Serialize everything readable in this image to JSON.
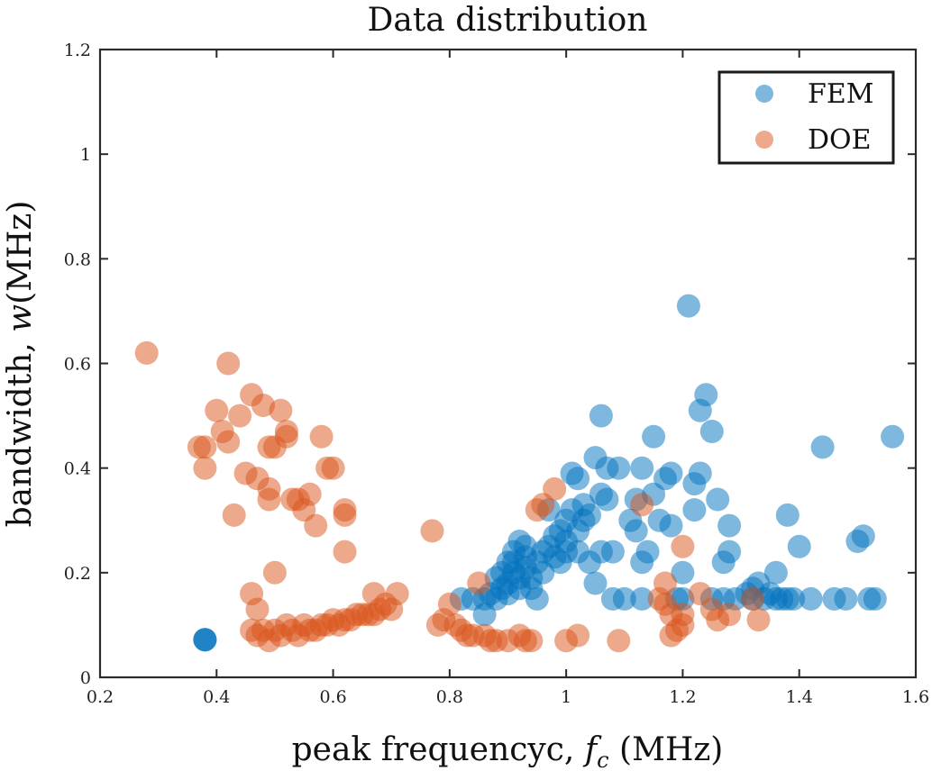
{
  "chart_data": {
    "type": "scatter",
    "title": "Data distribution",
    "xlabel": "peak frequencyc, f_c (MHz)",
    "xlabel_parts": {
      "prefix": "peak frequencyc, ",
      "var": "f",
      "sub": "c",
      "suffix": " (MHz)"
    },
    "ylabel": "bandwidth, w(MHz)",
    "ylabel_parts": {
      "prefix": "bandwidth, ",
      "var": "w",
      "suffix": "(MHz)"
    },
    "xlim": [
      0.2,
      1.6
    ],
    "ylim": [
      0,
      1.2
    ],
    "xticks": [
      0.2,
      0.4,
      0.6,
      0.8,
      1,
      1.2,
      1.4,
      1.6
    ],
    "xtick_labels": [
      "0.2",
      "0.4",
      "0.6",
      "0.8",
      "1",
      "1.2",
      "1.4",
      "1.6"
    ],
    "yticks": [
      0,
      0.2,
      0.4,
      0.6,
      0.8,
      1,
      1.2
    ],
    "ytick_labels": [
      "0",
      "0.2",
      "0.4",
      "0.6",
      "0.8",
      "1",
      "1.2"
    ],
    "grid": false,
    "legend_position": "top-right",
    "series": [
      {
        "name": "FEM",
        "color": "#0072BD",
        "points": [
          [
            0.38,
            0.072
          ],
          [
            0.38,
            0.072
          ],
          [
            0.38,
            0.072
          ],
          [
            0.82,
            0.15
          ],
          [
            0.84,
            0.15
          ],
          [
            0.86,
            0.12
          ],
          [
            0.86,
            0.15
          ],
          [
            0.87,
            0.16
          ],
          [
            0.88,
            0.15
          ],
          [
            0.88,
            0.19
          ],
          [
            0.89,
            0.17
          ],
          [
            0.89,
            0.2
          ],
          [
            0.9,
            0.22
          ],
          [
            0.9,
            0.16
          ],
          [
            0.9,
            0.18
          ],
          [
            0.91,
            0.2
          ],
          [
            0.91,
            0.22
          ],
          [
            0.91,
            0.24
          ],
          [
            0.92,
            0.26
          ],
          [
            0.92,
            0.19
          ],
          [
            0.92,
            0.17
          ],
          [
            0.93,
            0.21
          ],
          [
            0.93,
            0.23
          ],
          [
            0.93,
            0.25
          ],
          [
            0.94,
            0.19
          ],
          [
            0.94,
            0.17
          ],
          [
            0.95,
            0.22
          ],
          [
            0.95,
            0.15
          ],
          [
            0.96,
            0.24
          ],
          [
            0.96,
            0.2
          ],
          [
            0.97,
            0.25
          ],
          [
            0.97,
            0.32
          ],
          [
            0.98,
            0.27
          ],
          [
            0.98,
            0.23
          ],
          [
            0.99,
            0.28
          ],
          [
            0.99,
            0.22
          ],
          [
            1.0,
            0.3
          ],
          [
            1.0,
            0.26
          ],
          [
            1.0,
            0.24
          ],
          [
            1.01,
            0.32
          ],
          [
            1.01,
            0.39
          ],
          [
            1.02,
            0.28
          ],
          [
            1.02,
            0.24
          ],
          [
            1.02,
            0.38
          ],
          [
            1.03,
            0.33
          ],
          [
            1.03,
            0.3
          ],
          [
            1.04,
            0.31
          ],
          [
            1.04,
            0.22
          ],
          [
            1.05,
            0.42
          ],
          [
            1.05,
            0.18
          ],
          [
            1.06,
            0.5
          ],
          [
            1.06,
            0.35
          ],
          [
            1.06,
            0.24
          ],
          [
            1.07,
            0.4
          ],
          [
            1.07,
            0.34
          ],
          [
            1.08,
            0.15
          ],
          [
            1.08,
            0.24
          ],
          [
            1.09,
            0.4
          ],
          [
            1.1,
            0.15
          ],
          [
            1.11,
            0.3
          ],
          [
            1.12,
            0.34
          ],
          [
            1.12,
            0.28
          ],
          [
            1.13,
            0.4
          ],
          [
            1.13,
            0.22
          ],
          [
            1.13,
            0.15
          ],
          [
            1.14,
            0.24
          ],
          [
            1.15,
            0.46
          ],
          [
            1.15,
            0.35
          ],
          [
            1.16,
            0.3
          ],
          [
            1.17,
            0.38
          ],
          [
            1.18,
            0.29
          ],
          [
            1.18,
            0.39
          ],
          [
            1.19,
            0.15
          ],
          [
            1.2,
            0.2
          ],
          [
            1.2,
            0.15
          ],
          [
            1.21,
            0.71
          ],
          [
            1.22,
            0.37
          ],
          [
            1.22,
            0.32
          ],
          [
            1.23,
            0.39
          ],
          [
            1.23,
            0.51
          ],
          [
            1.24,
            0.54
          ],
          [
            1.25,
            0.47
          ],
          [
            1.25,
            0.15
          ],
          [
            1.26,
            0.34
          ],
          [
            1.27,
            0.22
          ],
          [
            1.27,
            0.15
          ],
          [
            1.28,
            0.29
          ],
          [
            1.28,
            0.24
          ],
          [
            1.29,
            0.15
          ],
          [
            1.31,
            0.16
          ],
          [
            1.32,
            0.15
          ],
          [
            1.32,
            0.17
          ],
          [
            1.33,
            0.18
          ],
          [
            1.34,
            0.15
          ],
          [
            1.35,
            0.16
          ],
          [
            1.36,
            0.2
          ],
          [
            1.36,
            0.15
          ],
          [
            1.37,
            0.15
          ],
          [
            1.38,
            0.15
          ],
          [
            1.38,
            0.31
          ],
          [
            1.39,
            0.15
          ],
          [
            1.4,
            0.25
          ],
          [
            1.42,
            0.15
          ],
          [
            1.44,
            0.44
          ],
          [
            1.46,
            0.15
          ],
          [
            1.48,
            0.15
          ],
          [
            1.5,
            0.26
          ],
          [
            1.51,
            0.27
          ],
          [
            1.52,
            0.15
          ],
          [
            1.53,
            0.15
          ],
          [
            1.56,
            0.46
          ]
        ]
      },
      {
        "name": "DOE",
        "color": "#D95319",
        "points": [
          [
            0.28,
            0.62
          ],
          [
            0.37,
            0.44
          ],
          [
            0.38,
            0.44
          ],
          [
            0.38,
            0.4
          ],
          [
            0.4,
            0.51
          ],
          [
            0.41,
            0.47
          ],
          [
            0.42,
            0.6
          ],
          [
            0.42,
            0.45
          ],
          [
            0.43,
            0.31
          ],
          [
            0.44,
            0.5
          ],
          [
            0.45,
            0.39
          ],
          [
            0.46,
            0.54
          ],
          [
            0.46,
            0.16
          ],
          [
            0.47,
            0.13
          ],
          [
            0.47,
            0.38
          ],
          [
            0.48,
            0.52
          ],
          [
            0.49,
            0.44
          ],
          [
            0.49,
            0.36
          ],
          [
            0.49,
            0.34
          ],
          [
            0.5,
            0.2
          ],
          [
            0.5,
            0.44
          ],
          [
            0.51,
            0.51
          ],
          [
            0.52,
            0.47
          ],
          [
            0.52,
            0.46
          ],
          [
            0.53,
            0.34
          ],
          [
            0.54,
            0.34
          ],
          [
            0.55,
            0.32
          ],
          [
            0.56,
            0.35
          ],
          [
            0.57,
            0.29
          ],
          [
            0.58,
            0.46
          ],
          [
            0.59,
            0.4
          ],
          [
            0.6,
            0.4
          ],
          [
            0.62,
            0.31
          ],
          [
            0.62,
            0.32
          ],
          [
            0.62,
            0.24
          ],
          [
            0.77,
            0.28
          ],
          [
            0.46,
            0.09
          ],
          [
            0.47,
            0.08
          ],
          [
            0.48,
            0.09
          ],
          [
            0.49,
            0.07
          ],
          [
            0.5,
            0.09
          ],
          [
            0.51,
            0.08
          ],
          [
            0.52,
            0.1
          ],
          [
            0.53,
            0.09
          ],
          [
            0.54,
            0.08
          ],
          [
            0.55,
            0.1
          ],
          [
            0.56,
            0.09
          ],
          [
            0.57,
            0.09
          ],
          [
            0.58,
            0.1
          ],
          [
            0.59,
            0.1
          ],
          [
            0.6,
            0.11
          ],
          [
            0.61,
            0.1
          ],
          [
            0.62,
            0.11
          ],
          [
            0.63,
            0.11
          ],
          [
            0.64,
            0.12
          ],
          [
            0.65,
            0.12
          ],
          [
            0.66,
            0.12
          ],
          [
            0.67,
            0.16
          ],
          [
            0.67,
            0.12
          ],
          [
            0.68,
            0.13
          ],
          [
            0.69,
            0.14
          ],
          [
            0.7,
            0.13
          ],
          [
            0.71,
            0.16
          ],
          [
            0.78,
            0.1
          ],
          [
            0.79,
            0.11
          ],
          [
            0.8,
            0.14
          ],
          [
            0.81,
            0.1
          ],
          [
            0.82,
            0.09
          ],
          [
            0.83,
            0.08
          ],
          [
            0.84,
            0.08
          ],
          [
            0.85,
            0.18
          ],
          [
            0.86,
            0.08
          ],
          [
            0.87,
            0.07
          ],
          [
            0.88,
            0.07
          ],
          [
            0.9,
            0.07
          ],
          [
            0.92,
            0.08
          ],
          [
            0.93,
            0.07
          ],
          [
            0.94,
            0.07
          ],
          [
            0.95,
            0.32
          ],
          [
            0.96,
            0.33
          ],
          [
            0.98,
            0.36
          ],
          [
            1.0,
            0.07
          ],
          [
            1.02,
            0.08
          ],
          [
            1.09,
            0.07
          ],
          [
            1.13,
            0.33
          ],
          [
            1.16,
            0.15
          ],
          [
            1.17,
            0.14
          ],
          [
            1.17,
            0.18
          ],
          [
            1.18,
            0.08
          ],
          [
            1.18,
            0.12
          ],
          [
            1.19,
            0.09
          ],
          [
            1.2,
            0.12
          ],
          [
            1.2,
            0.1
          ],
          [
            1.2,
            0.25
          ],
          [
            1.23,
            0.16
          ],
          [
            1.25,
            0.13
          ],
          [
            1.26,
            0.11
          ],
          [
            1.28,
            0.12
          ],
          [
            1.32,
            0.15
          ],
          [
            1.33,
            0.11
          ]
        ]
      }
    ]
  }
}
